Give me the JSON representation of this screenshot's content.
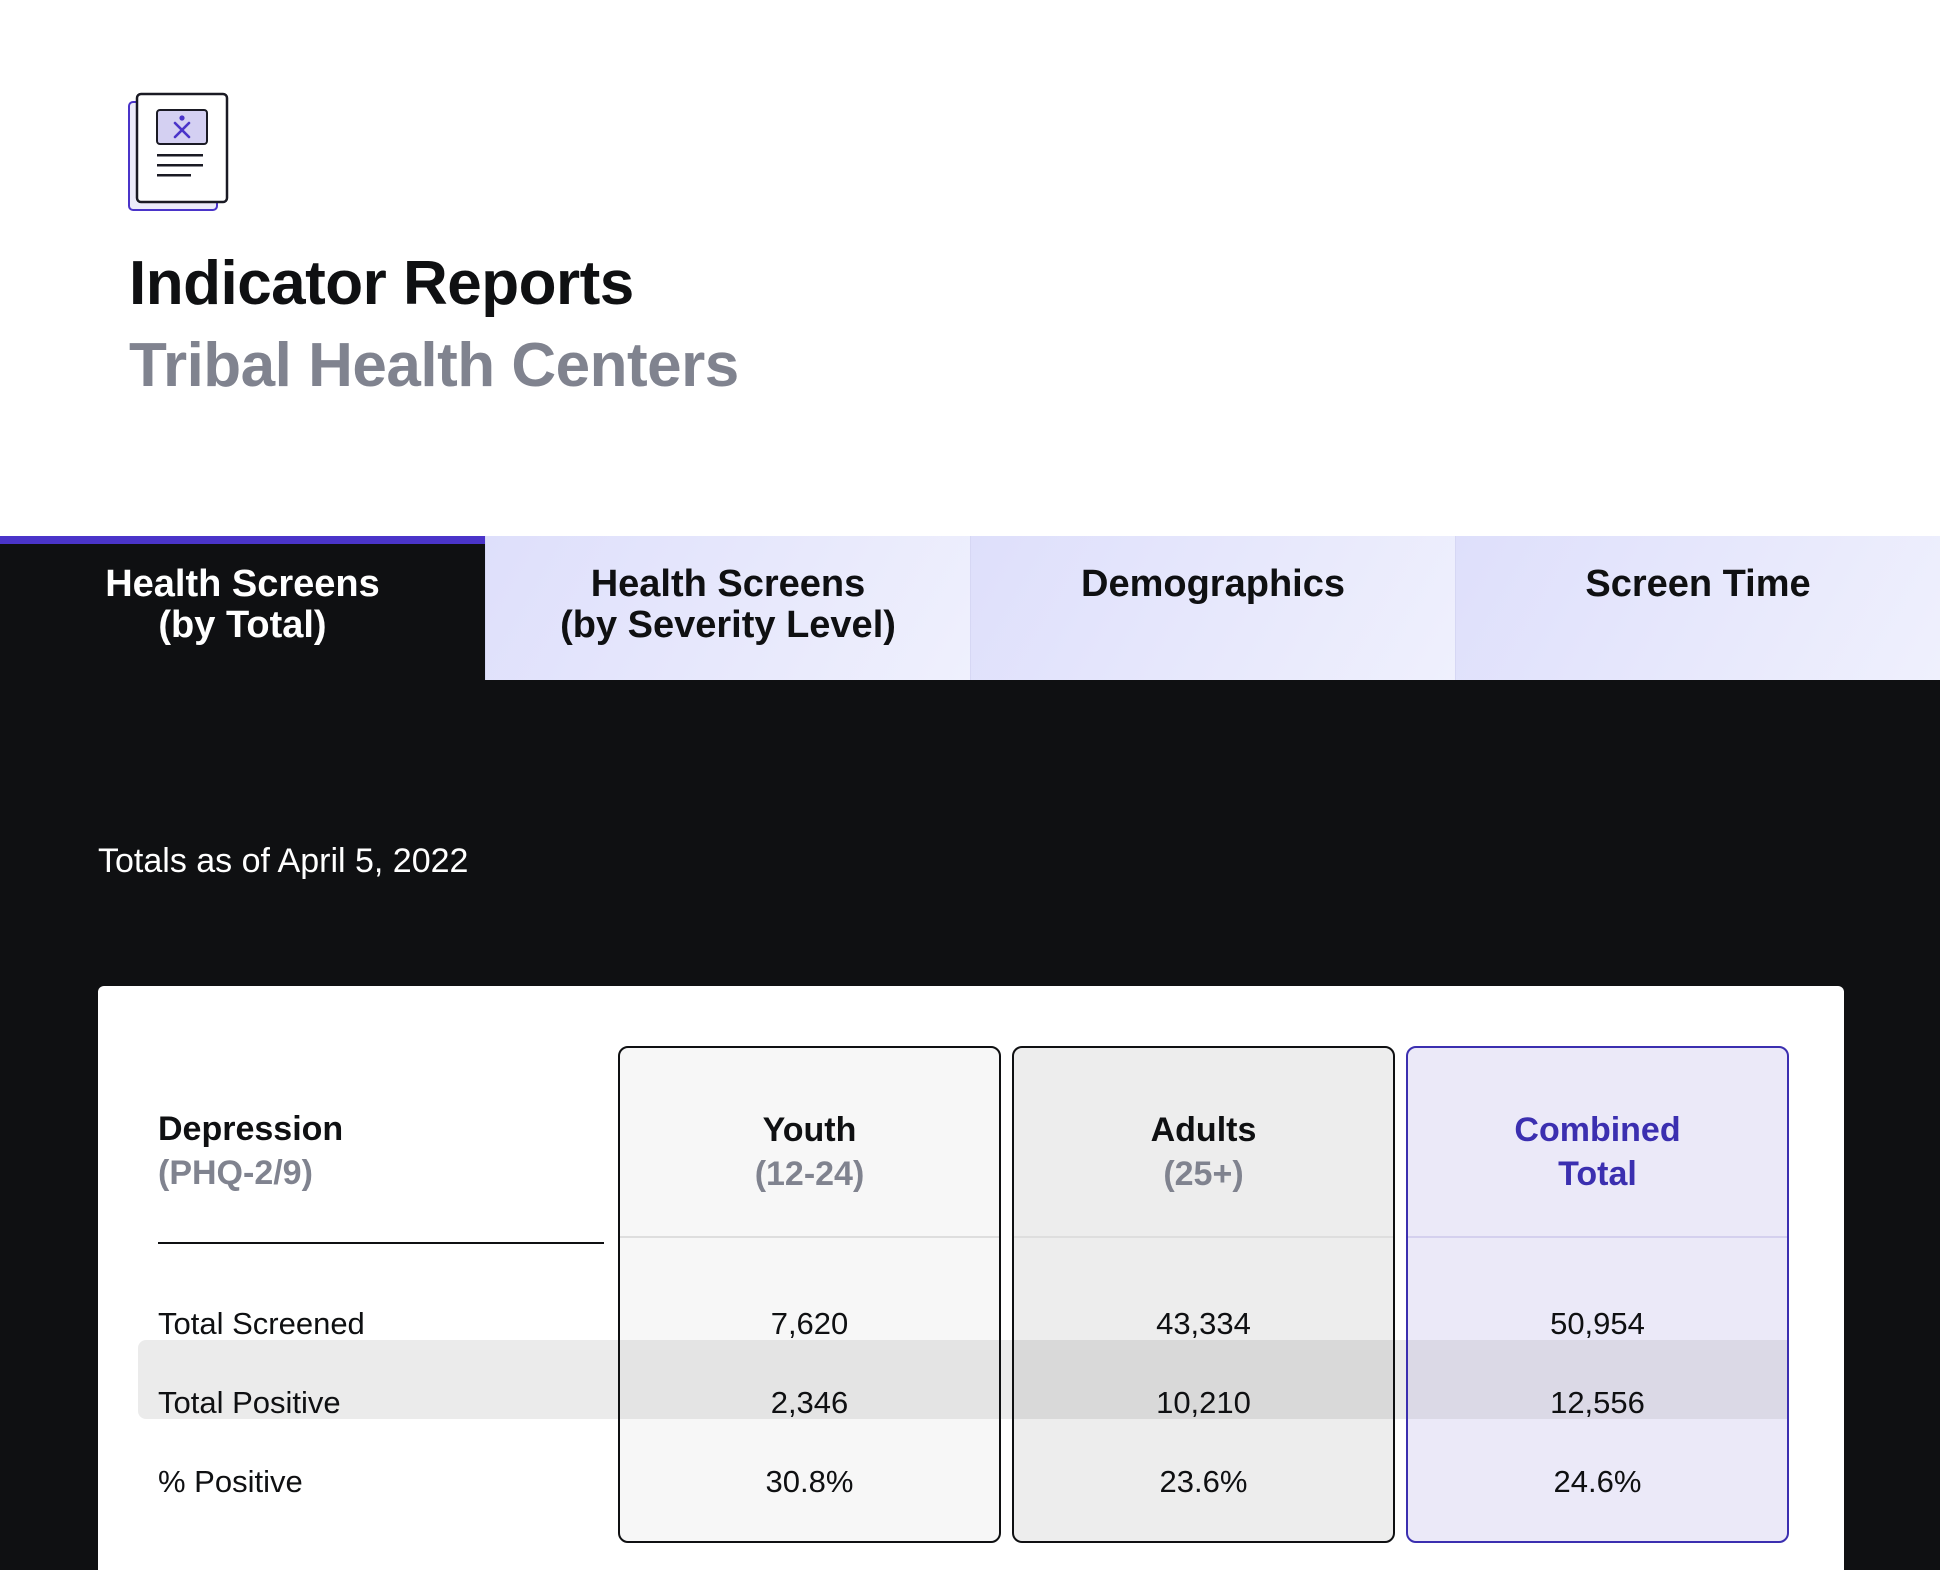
{
  "header": {
    "logo_icon": "document-report-icon",
    "title": "Indicator Reports",
    "subtitle": "Tribal Health Centers"
  },
  "tabs": [
    {
      "label": "Health Screens\n(by Total)",
      "active": true
    },
    {
      "label": "Health Screens\n(by Severity Level)",
      "active": false
    },
    {
      "label": "Demographics",
      "active": false
    },
    {
      "label": "Screen Time",
      "active": false
    }
  ],
  "totals_as_of": "Totals as of April 5, 2022",
  "table": {
    "metric_title": "Depression",
    "metric_subtitle": "(PHQ-2/9)",
    "rows": [
      "Total Screened",
      "Total Positive",
      "% Positive"
    ],
    "columns": [
      {
        "title": "Youth",
        "subtitle": "(12-24)",
        "values": [
          "7,620",
          "2,346",
          "30.8%"
        ]
      },
      {
        "title": "Adults",
        "subtitle": "(25+)",
        "values": [
          "43,334",
          "10,210",
          "23.6%"
        ]
      },
      {
        "title": "Combined\nTotal",
        "subtitle": "",
        "values": [
          "50,954",
          "12,556",
          "24.6%"
        ]
      }
    ]
  },
  "colors": {
    "accent": "#4a34c9",
    "combined_text": "#3b2fb0",
    "dark_bg": "#0f1012",
    "tab_bg": "#e6e7fc",
    "muted_text": "#80838f"
  }
}
